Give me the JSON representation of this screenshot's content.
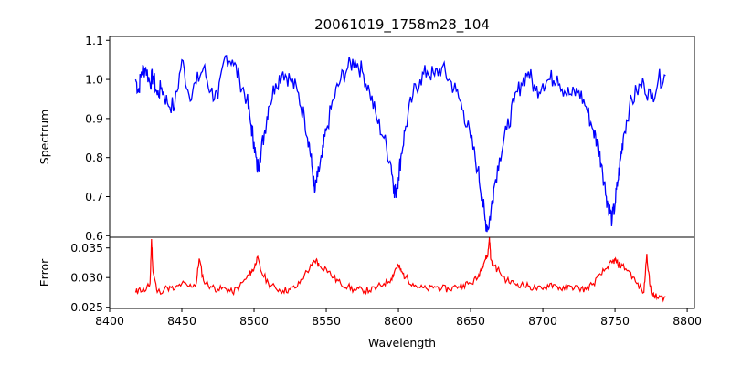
{
  "chart_data": [
    {
      "type": "line",
      "title": "20061019_1758m28_104",
      "xlabel": "",
      "ylabel": "Spectrum",
      "xlim": [
        8400,
        8805
      ],
      "ylim": [
        0.596,
        1.11
      ],
      "yticks": [
        0.6,
        0.7,
        0.8,
        0.9,
        1.0,
        1.1
      ],
      "ytick_labels": [
        "0.6",
        "0.7",
        "0.8",
        "0.9",
        "1.0",
        "1.1"
      ],
      "color": "#0000ff",
      "series": [
        {
          "x": [
            8418,
            8420,
            8422,
            8425,
            8428,
            8430,
            8433,
            8436,
            8440,
            8445,
            8450,
            8455,
            8460,
            8465,
            8470,
            8475,
            8480,
            8485,
            8490,
            8495,
            8498,
            8500,
            8502,
            8504,
            8507,
            8510,
            8515,
            8520,
            8525,
            8530,
            8535,
            8538,
            8540,
            8542,
            8544,
            8547,
            8550,
            8555,
            8560,
            8565,
            8570,
            8575,
            8580,
            8585,
            8590,
            8595,
            8597,
            8598,
            8600,
            8602,
            8605,
            8610,
            8615,
            8620,
            8625,
            8630,
            8635,
            8640,
            8645,
            8650,
            8655,
            8658,
            8660,
            8662,
            8664,
            8666,
            8670,
            8675,
            8680,
            8685,
            8690,
            8695,
            8700,
            8705,
            8710,
            8715,
            8720,
            8725,
            8730,
            8735,
            8738,
            8741,
            8744,
            8746,
            8748,
            8750,
            8752,
            8754,
            8756,
            8760,
            8765,
            8770,
            8775,
            8780,
            8785
          ],
          "y": [
            1.0,
            0.97,
            1.02,
            1.03,
            0.99,
            1.01,
            0.96,
            0.98,
            0.94,
            0.93,
            1.05,
            0.96,
            0.99,
            1.03,
            0.97,
            0.95,
            1.06,
            1.05,
            1.0,
            0.95,
            0.88,
            0.84,
            0.77,
            0.8,
            0.86,
            0.93,
            0.99,
            1.02,
            1.0,
            0.97,
            0.9,
            0.84,
            0.78,
            0.71,
            0.75,
            0.8,
            0.87,
            0.95,
            1.0,
            1.03,
            1.05,
            1.02,
            0.97,
            0.9,
            0.85,
            0.78,
            0.72,
            0.71,
            0.75,
            0.81,
            0.88,
            0.96,
            1.0,
            1.02,
            1.01,
            1.03,
            1.0,
            0.97,
            0.92,
            0.85,
            0.77,
            0.7,
            0.64,
            0.62,
            0.66,
            0.72,
            0.8,
            0.87,
            0.94,
            0.99,
            1.02,
            0.97,
            0.99,
            1.0,
            1.01,
            0.97,
            0.96,
            0.97,
            0.93,
            0.87,
            0.83,
            0.78,
            0.7,
            0.67,
            0.64,
            0.68,
            0.74,
            0.8,
            0.86,
            0.93,
            0.97,
            0.99,
            0.95,
            1.0,
            1.01
          ]
        }
      ]
    },
    {
      "type": "line",
      "xlabel": "Wavelength",
      "ylabel": "Error",
      "xlim": [
        8400,
        8805
      ],
      "ylim": [
        0.0248,
        0.0368
      ],
      "xticks": [
        8400,
        8450,
        8500,
        8550,
        8600,
        8650,
        8700,
        8750,
        8800
      ],
      "xtick_labels": [
        "8400",
        "8450",
        "8500",
        "8550",
        "8600",
        "8650",
        "8700",
        "8750",
        "8800"
      ],
      "yticks": [
        0.025,
        0.03,
        0.035
      ],
      "ytick_labels": [
        "0.025",
        "0.030",
        "0.035"
      ],
      "color": "#ff0000",
      "series": [
        {
          "x": [
            8418,
            8420,
            8425,
            8428,
            8429,
            8430,
            8433,
            8440,
            8445,
            8450,
            8455,
            8460,
            8462,
            8465,
            8470,
            8475,
            8480,
            8485,
            8490,
            8495,
            8498,
            8500,
            8502,
            8505,
            8510,
            8515,
            8520,
            8525,
            8530,
            8535,
            8540,
            8543,
            8545,
            8550,
            8555,
            8560,
            8565,
            8570,
            8575,
            8580,
            8585,
            8590,
            8595,
            8598,
            8600,
            8602,
            8605,
            8610,
            8615,
            8620,
            8625,
            8630,
            8635,
            8640,
            8645,
            8650,
            8655,
            8658,
            8660,
            8662,
            8663,
            8664,
            8666,
            8670,
            8675,
            8680,
            8685,
            8690,
            8695,
            8700,
            8705,
            8710,
            8715,
            8720,
            8725,
            8730,
            8735,
            8740,
            8745,
            8748,
            8750,
            8752,
            8755,
            8760,
            8765,
            8770,
            8772,
            8774,
            8776,
            8778,
            8780,
            8785
          ],
          "y": [
            0.0275,
            0.028,
            0.0278,
            0.029,
            0.0365,
            0.031,
            0.0275,
            0.0283,
            0.028,
            0.029,
            0.0285,
            0.029,
            0.0332,
            0.0295,
            0.0285,
            0.028,
            0.0282,
            0.0275,
            0.0285,
            0.03,
            0.031,
            0.0315,
            0.0334,
            0.031,
            0.029,
            0.0282,
            0.0278,
            0.028,
            0.0285,
            0.0305,
            0.032,
            0.033,
            0.032,
            0.0315,
            0.03,
            0.029,
            0.0285,
            0.0278,
            0.028,
            0.0278,
            0.0283,
            0.029,
            0.0298,
            0.0315,
            0.032,
            0.031,
            0.03,
            0.029,
            0.0283,
            0.028,
            0.0285,
            0.0282,
            0.028,
            0.0285,
            0.0288,
            0.029,
            0.03,
            0.032,
            0.033,
            0.034,
            0.0368,
            0.033,
            0.032,
            0.031,
            0.0295,
            0.029,
            0.0288,
            0.0285,
            0.0282,
            0.028,
            0.029,
            0.0285,
            0.028,
            0.0285,
            0.0282,
            0.028,
            0.029,
            0.0305,
            0.0318,
            0.0325,
            0.033,
            0.0322,
            0.032,
            0.031,
            0.029,
            0.0275,
            0.034,
            0.029,
            0.027,
            0.0268,
            0.0265,
            0.0268
          ]
        }
      ]
    }
  ]
}
